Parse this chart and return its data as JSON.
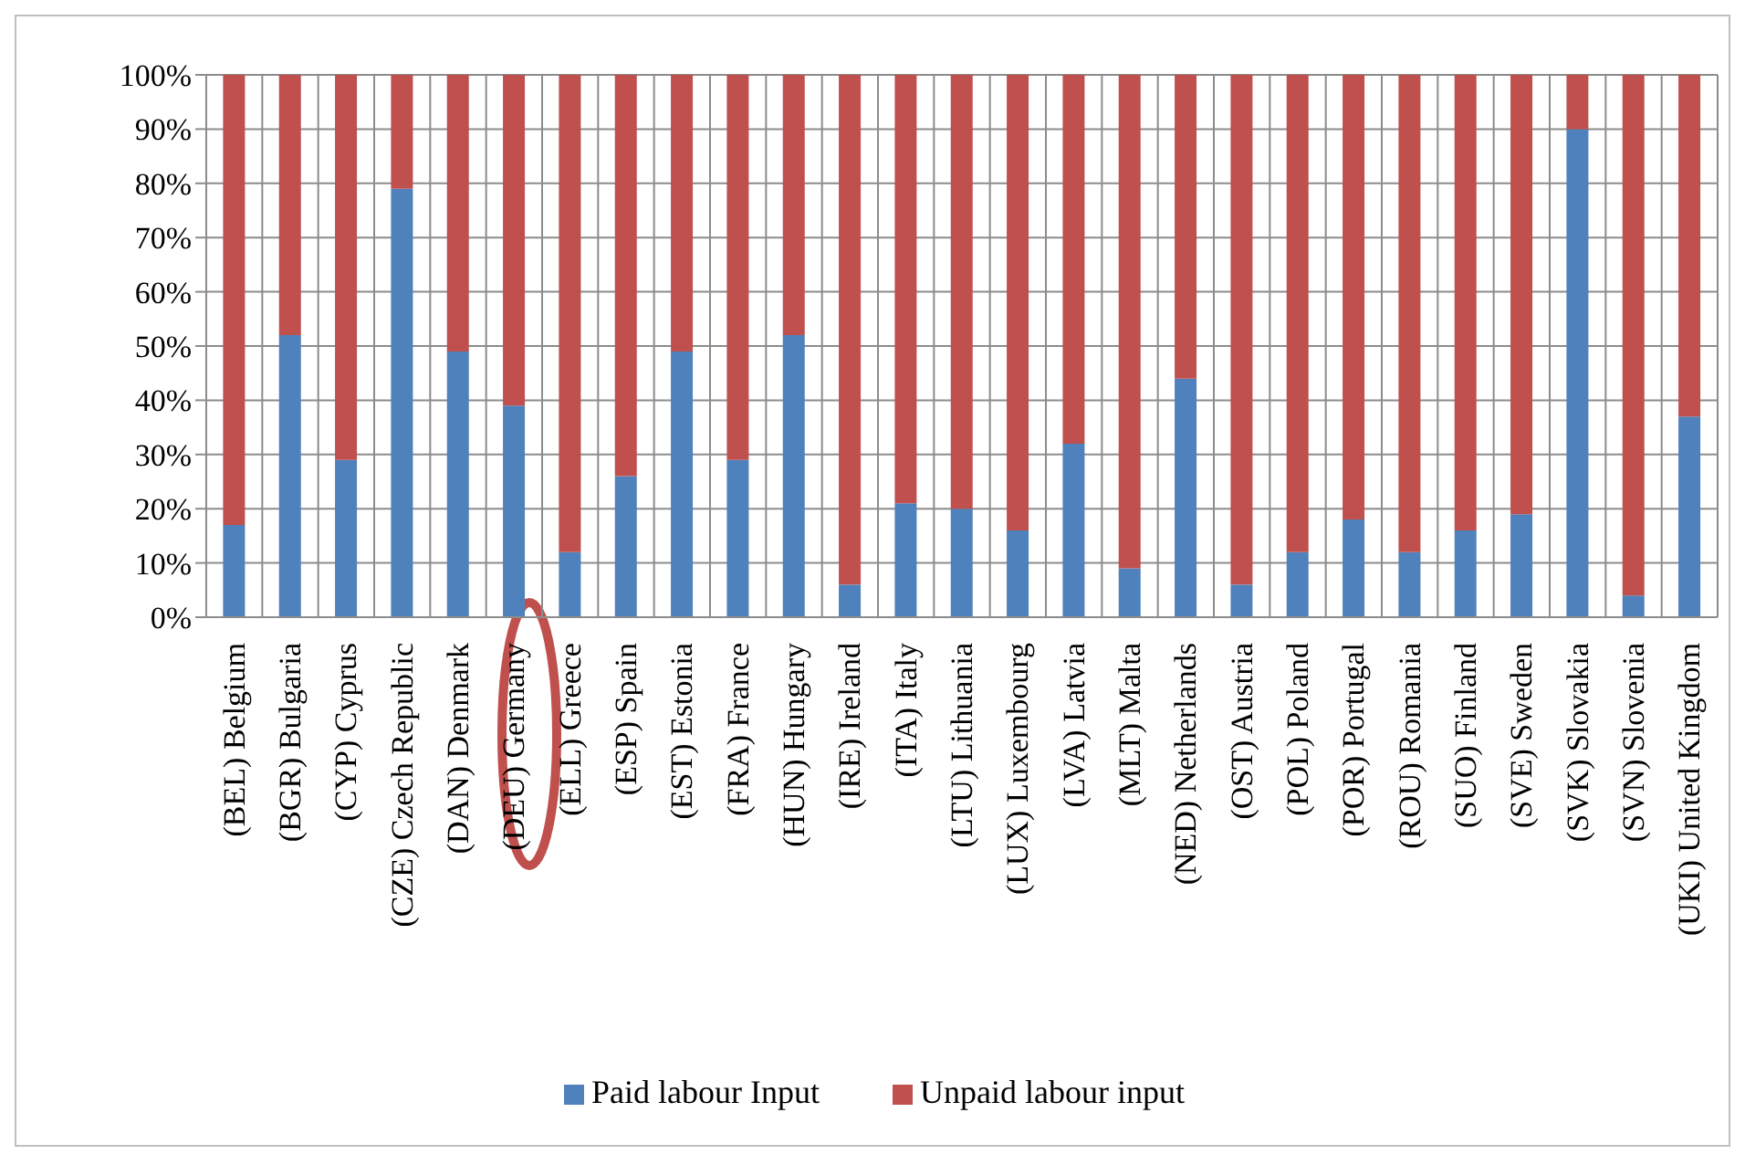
{
  "chart_data": {
    "type": "bar",
    "stacked": true,
    "categories": [
      "(BEL) Belgium",
      "(BGR) Bulgaria",
      "(CYP) Cyprus",
      "(CZE) Czech Republic",
      "(DAN) Denmark",
      "(DEU) Germany",
      "(ELL) Greece",
      "(ESP) Spain",
      "(EST) Estonia",
      "(FRA) France",
      "(HUN) Hungary",
      "(IRE) Ireland",
      "(ITA) Italy",
      "(LTU) Lithuania",
      "(LUX) Luxembourg",
      "(LVA) Latvia",
      "(MLT) Malta",
      "(NED) Netherlands",
      "(OST) Austria",
      "(POL) Poland",
      "(POR) Portugal",
      "(ROU) Romania",
      "(SUO) Finland",
      "(SVE) Sweden",
      "(SVK) Slovakia",
      "(SVN) Slovenia",
      "(UKI) United Kingdom"
    ],
    "series": [
      {
        "name": "Paid labour Input",
        "color": "#4f81bd",
        "values": [
          17,
          52,
          29,
          79,
          49,
          39,
          12,
          26,
          49,
          29,
          52,
          6,
          21,
          20,
          16,
          32,
          9,
          44,
          6,
          12,
          18,
          12,
          16,
          19,
          90,
          4,
          37
        ]
      },
      {
        "name": "Unpaid labour input",
        "color": "#c0504d",
        "values": [
          83,
          48,
          71,
          21,
          51,
          61,
          88,
          74,
          51,
          71,
          48,
          94,
          79,
          80,
          84,
          68,
          91,
          56,
          94,
          88,
          82,
          88,
          84,
          81,
          10,
          96,
          63
        ]
      }
    ],
    "ylim": [
      0,
      100
    ],
    "yticks": [
      {
        "value": 0,
        "label": "0%"
      },
      {
        "value": 10,
        "label": "10%"
      },
      {
        "value": 20,
        "label": "20%"
      },
      {
        "value": 30,
        "label": "30%"
      },
      {
        "value": 40,
        "label": "40%"
      },
      {
        "value": 50,
        "label": "50%"
      },
      {
        "value": 60,
        "label": "60%"
      },
      {
        "value": 70,
        "label": "70%"
      },
      {
        "value": 80,
        "label": "80%"
      },
      {
        "value": 90,
        "label": "90%"
      },
      {
        "value": 100,
        "label": "100%"
      }
    ],
    "grid": true,
    "legend": "bottom"
  }
}
